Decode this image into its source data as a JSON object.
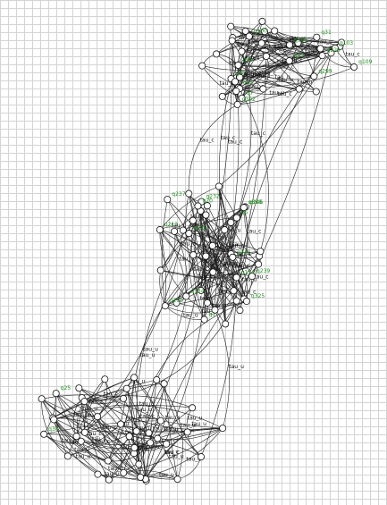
{
  "diagram": {
    "type": "state-transition-graph",
    "edge_labels": [
      "tau_u",
      "tau_c"
    ],
    "state_labels": [
      "q109",
      "q302",
      "q106",
      "q100",
      "q103",
      "q12",
      "q17",
      "q299",
      "q33",
      "q39",
      "q7",
      "q31",
      "q229",
      "q134",
      "q154",
      "q190",
      "q246",
      "q241",
      "q232",
      "q230",
      "q237",
      "q213",
      "q239",
      "q325",
      "q318",
      "q1",
      "q5",
      "q20",
      "q25",
      "q30"
    ],
    "colors": {
      "state_label": "#1f8a1f",
      "edge": "#222222",
      "grid": "#d4d4d4"
    }
  }
}
